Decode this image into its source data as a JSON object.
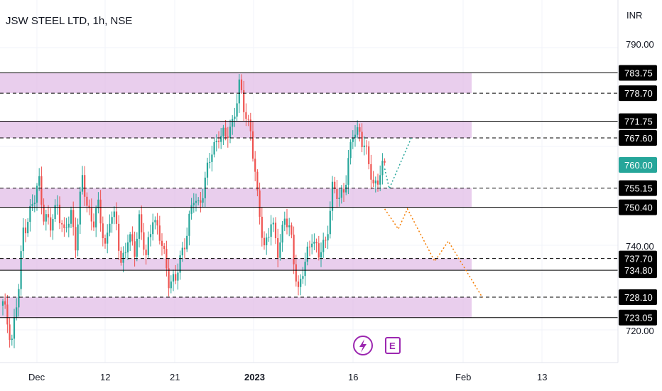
{
  "header": {
    "title": "JSW STEEL LTD, 1h, NSE"
  },
  "axis": {
    "currency": "INR",
    "price_ticks": [
      "790.00",
      "740.00",
      "720.00"
    ],
    "date_ticks": [
      "Dec",
      "12",
      "21",
      "2023",
      "16",
      "Feb",
      "13"
    ]
  },
  "colors": {
    "up": "#26a69a",
    "down": "#ef5350",
    "zone": "#e1bee7",
    "current_tag": "#26a69a",
    "level_tag": "#000000",
    "projection_up": "#26a69a",
    "projection_down": "#f57c00",
    "icon_accent": "#9c27b0"
  },
  "icons": {
    "flash": "lightning-icon",
    "earnings": "E"
  },
  "chart_data": {
    "type": "candlestick",
    "title": "JSW STEEL LTD, 1h, NSE",
    "ylabel": "INR",
    "ylim": [
      716.5,
      800
    ],
    "current_price": "760.00",
    "levels": [
      {
        "label": "783.75",
        "value": 783.75,
        "style": "solid"
      },
      {
        "label": "778.70",
        "value": 778.7,
        "style": "dashed"
      },
      {
        "label": "771.75",
        "value": 771.75,
        "style": "solid"
      },
      {
        "label": "767.60",
        "value": 767.6,
        "style": "dashed"
      },
      {
        "label": "755.15",
        "value": 755.15,
        "style": "dashed"
      },
      {
        "label": "750.40",
        "value": 750.4,
        "style": "solid"
      },
      {
        "label": "737.70",
        "value": 737.7,
        "style": "dashed"
      },
      {
        "label": "734.80",
        "value": 734.8,
        "style": "solid"
      },
      {
        "label": "728.10",
        "value": 728.1,
        "style": "dashed"
      },
      {
        "label": "723.05",
        "value": 723.05,
        "style": "solid"
      }
    ],
    "zones": [
      {
        "low": 778.7,
        "high": 783.75
      },
      {
        "low": 767.6,
        "high": 771.75
      },
      {
        "low": 750.4,
        "high": 755.15
      },
      {
        "low": 734.8,
        "high": 737.7
      },
      {
        "low": 723.05,
        "high": 728.1
      }
    ],
    "price_path": [
      [
        0,
        726
      ],
      [
        4,
        718
      ],
      [
        7,
        730
      ],
      [
        9,
        745
      ],
      [
        11,
        748
      ],
      [
        14,
        752
      ],
      [
        16,
        757
      ],
      [
        18,
        749
      ],
      [
        21,
        745
      ],
      [
        24,
        752
      ],
      [
        27,
        743
      ],
      [
        30,
        749
      ],
      [
        32,
        742
      ],
      [
        35,
        757
      ],
      [
        37,
        751
      ],
      [
        40,
        747
      ],
      [
        42,
        750
      ],
      [
        45,
        741
      ],
      [
        47,
        748
      ],
      [
        50,
        746
      ],
      [
        52,
        737
      ],
      [
        55,
        742
      ],
      [
        58,
        740
      ],
      [
        60,
        748
      ],
      [
        63,
        737
      ],
      [
        66,
        749
      ],
      [
        68,
        745
      ],
      [
        71,
        738
      ],
      [
        73,
        733
      ],
      [
        76,
        732
      ],
      [
        78,
        737
      ],
      [
        81,
        745
      ],
      [
        84,
        752
      ],
      [
        86,
        751
      ],
      [
        89,
        757
      ],
      [
        92,
        764
      ],
      [
        95,
        769
      ],
      [
        98,
        767
      ],
      [
        101,
        772
      ],
      [
        104,
        780
      ],
      [
        106,
        775
      ],
      [
        109,
        770
      ],
      [
        112,
        752
      ],
      [
        115,
        741
      ],
      [
        118,
        746
      ],
      [
        121,
        740
      ],
      [
        124,
        748
      ],
      [
        127,
        742
      ],
      [
        130,
        730
      ],
      [
        133,
        736
      ],
      [
        136,
        744
      ],
      [
        139,
        738
      ],
      [
        142,
        742
      ],
      [
        145,
        755
      ],
      [
        148,
        752
      ],
      [
        151,
        758
      ],
      [
        154,
        768
      ],
      [
        157,
        770
      ],
      [
        160,
        763
      ],
      [
        163,
        756
      ],
      [
        166,
        759
      ],
      [
        168,
        760
      ]
    ],
    "projections": [
      {
        "color": "projection_up",
        "points": [
          [
            168,
            760
          ],
          [
            170,
            755
          ],
          [
            180,
            768
          ]
        ]
      },
      {
        "color": "projection_down",
        "points": [
          [
            168,
            750
          ],
          [
            174,
            745
          ],
          [
            178,
            750
          ],
          [
            190,
            737
          ],
          [
            196,
            742
          ],
          [
            211,
            728
          ]
        ]
      }
    ]
  }
}
